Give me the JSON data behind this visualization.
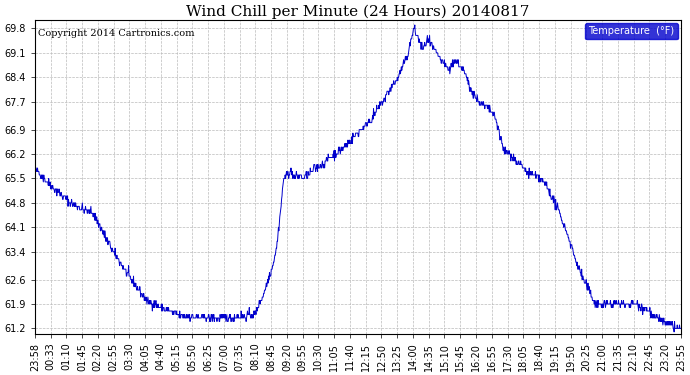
{
  "title": "Wind Chill per Minute (24 Hours) 20140817",
  "copyright": "Copyright 2014 Cartronics.com",
  "legend_label": "Temperature  (°F)",
  "line_color": "#0000CC",
  "background_color": "#ffffff",
  "grid_color": "#bbbbbb",
  "ylim": [
    61.05,
    70.05
  ],
  "yticks": [
    61.2,
    61.9,
    62.6,
    63.4,
    64.1,
    64.8,
    65.5,
    66.2,
    66.9,
    67.7,
    68.4,
    69.1,
    69.8
  ],
  "title_fontsize": 11,
  "tick_fontsize": 7,
  "copyright_fontsize": 7,
  "x_labels": [
    "23:58",
    "00:33",
    "01:10",
    "01:45",
    "02:20",
    "02:55",
    "03:30",
    "04:05",
    "04:40",
    "05:15",
    "05:50",
    "06:25",
    "07:00",
    "07:35",
    "08:10",
    "08:45",
    "09:20",
    "09:55",
    "10:30",
    "11:05",
    "11:40",
    "12:15",
    "12:50",
    "13:25",
    "14:00",
    "14:35",
    "15:10",
    "15:45",
    "16:20",
    "16:55",
    "17:30",
    "18:05",
    "18:40",
    "19:15",
    "19:50",
    "20:25",
    "21:00",
    "21:35",
    "22:10",
    "22:45",
    "23:20",
    "23:55"
  ],
  "curve_keypoints": [
    [
      0,
      65.8
    ],
    [
      35,
      65.3
    ],
    [
      80,
      64.8
    ],
    [
      130,
      64.5
    ],
    [
      175,
      63.4
    ],
    [
      215,
      62.6
    ],
    [
      250,
      62.0
    ],
    [
      280,
      61.8
    ],
    [
      330,
      61.55
    ],
    [
      390,
      61.5
    ],
    [
      440,
      61.5
    ],
    [
      490,
      61.6
    ],
    [
      510,
      62.2
    ],
    [
      530,
      63.0
    ],
    [
      540,
      63.6
    ],
    [
      555,
      65.5
    ],
    [
      570,
      65.7
    ],
    [
      580,
      65.5
    ],
    [
      590,
      65.6
    ],
    [
      600,
      65.5
    ],
    [
      610,
      65.6
    ],
    [
      625,
      65.8
    ],
    [
      640,
      65.9
    ],
    [
      660,
      66.1
    ],
    [
      690,
      66.4
    ],
    [
      720,
      66.8
    ],
    [
      750,
      67.2
    ],
    [
      780,
      67.8
    ],
    [
      810,
      68.4
    ],
    [
      830,
      69.0
    ],
    [
      845,
      69.8
    ],
    [
      855,
      69.5
    ],
    [
      865,
      69.2
    ],
    [
      875,
      69.5
    ],
    [
      885,
      69.3
    ],
    [
      895,
      69.1
    ],
    [
      910,
      68.8
    ],
    [
      925,
      68.6
    ],
    [
      935,
      68.9
    ],
    [
      945,
      68.8
    ],
    [
      955,
      68.6
    ],
    [
      970,
      68.1
    ],
    [
      990,
      67.7
    ],
    [
      1010,
      67.5
    ],
    [
      1020,
      67.4
    ],
    [
      1030,
      67.1
    ],
    [
      1045,
      66.3
    ],
    [
      1060,
      66.2
    ],
    [
      1080,
      65.9
    ],
    [
      1095,
      65.7
    ],
    [
      1110,
      65.6
    ],
    [
      1125,
      65.5
    ],
    [
      1140,
      65.3
    ],
    [
      1155,
      64.9
    ],
    [
      1170,
      64.5
    ],
    [
      1190,
      63.8
    ],
    [
      1210,
      63.0
    ],
    [
      1230,
      62.4
    ],
    [
      1250,
      61.9
    ],
    [
      1270,
      61.9
    ],
    [
      1290,
      61.9
    ],
    [
      1310,
      61.9
    ],
    [
      1330,
      61.9
    ],
    [
      1340,
      61.9
    ],
    [
      1355,
      61.8
    ],
    [
      1370,
      61.7
    ],
    [
      1380,
      61.5
    ],
    [
      1390,
      61.5
    ],
    [
      1400,
      61.4
    ],
    [
      1410,
      61.3
    ],
    [
      1420,
      61.3
    ],
    [
      1430,
      61.2
    ],
    [
      1440,
      61.2
    ]
  ]
}
